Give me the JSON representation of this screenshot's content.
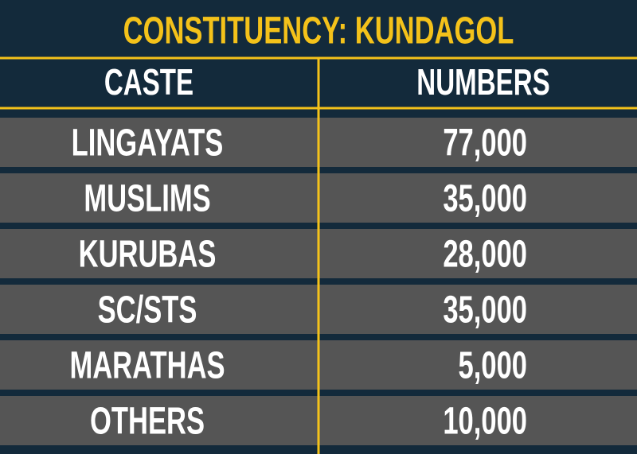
{
  "title": "CONSTITUENCY: KUNDAGOL",
  "table": {
    "header": [
      "CASTE",
      "NUMBERS"
    ],
    "rows": [
      [
        "LINGAYATS",
        "77,000"
      ],
      [
        "MUSLIMS",
        "35,000"
      ],
      [
        "KURUBAS",
        "28,000"
      ],
      [
        "SC/STS",
        "35,000"
      ],
      [
        "MARATHAS",
        "5,000"
      ],
      [
        "OTHERS",
        "10,000"
      ]
    ]
  }
}
